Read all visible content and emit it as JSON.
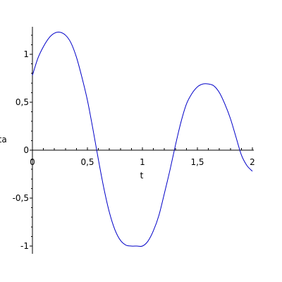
{
  "chart_data": {
    "type": "line",
    "xlabel": "t",
    "ylabel": "eta",
    "xlim": [
      0,
      2
    ],
    "ylim": [
      -1.02,
      1.28
    ],
    "grid": false,
    "x_ticks": [
      {
        "value": 0,
        "label": "0"
      },
      {
        "value": 0.5,
        "label": "0,5"
      },
      {
        "value": 1,
        "label": "1"
      },
      {
        "value": 1.5,
        "label": "1,5"
      },
      {
        "value": 2,
        "label": "2"
      }
    ],
    "y_ticks": [
      {
        "value": 1,
        "label": "1"
      },
      {
        "value": 0.5,
        "label": "0,5"
      },
      {
        "value": 0,
        "label": "0"
      },
      {
        "value": -0.5,
        "label": "-0,5"
      },
      {
        "value": -1,
        "label": "-1"
      }
    ],
    "x_minor_step": 0.1,
    "y_minor_step": 0.1,
    "series": [
      {
        "color": "#0000c8",
        "x": [
          0,
          0.05,
          0.1,
          0.15,
          0.2,
          0.25,
          0.3,
          0.35,
          0.4,
          0.45,
          0.5,
          0.55,
          0.6,
          0.65,
          0.7,
          0.75,
          0.8,
          0.85,
          0.9,
          0.95,
          1.0,
          1.05,
          1.1,
          1.15,
          1.2,
          1.25,
          1.3,
          1.35,
          1.4,
          1.45,
          1.5,
          1.55,
          1.6,
          1.65,
          1.7,
          1.75,
          1.8,
          1.85,
          1.9,
          1.95,
          2.0
        ],
        "y": [
          0.78,
          0.96,
          1.08,
          1.17,
          1.22,
          1.23,
          1.2,
          1.12,
          0.97,
          0.76,
          0.52,
          0.22,
          -0.1,
          -0.4,
          -0.65,
          -0.83,
          -0.94,
          -0.99,
          -1.0,
          -1.0,
          -1.0,
          -0.95,
          -0.84,
          -0.68,
          -0.45,
          -0.21,
          0.05,
          0.29,
          0.48,
          0.59,
          0.66,
          0.69,
          0.69,
          0.67,
          0.6,
          0.48,
          0.33,
          0.14,
          -0.05,
          -0.16,
          -0.22
        ]
      }
    ]
  }
}
